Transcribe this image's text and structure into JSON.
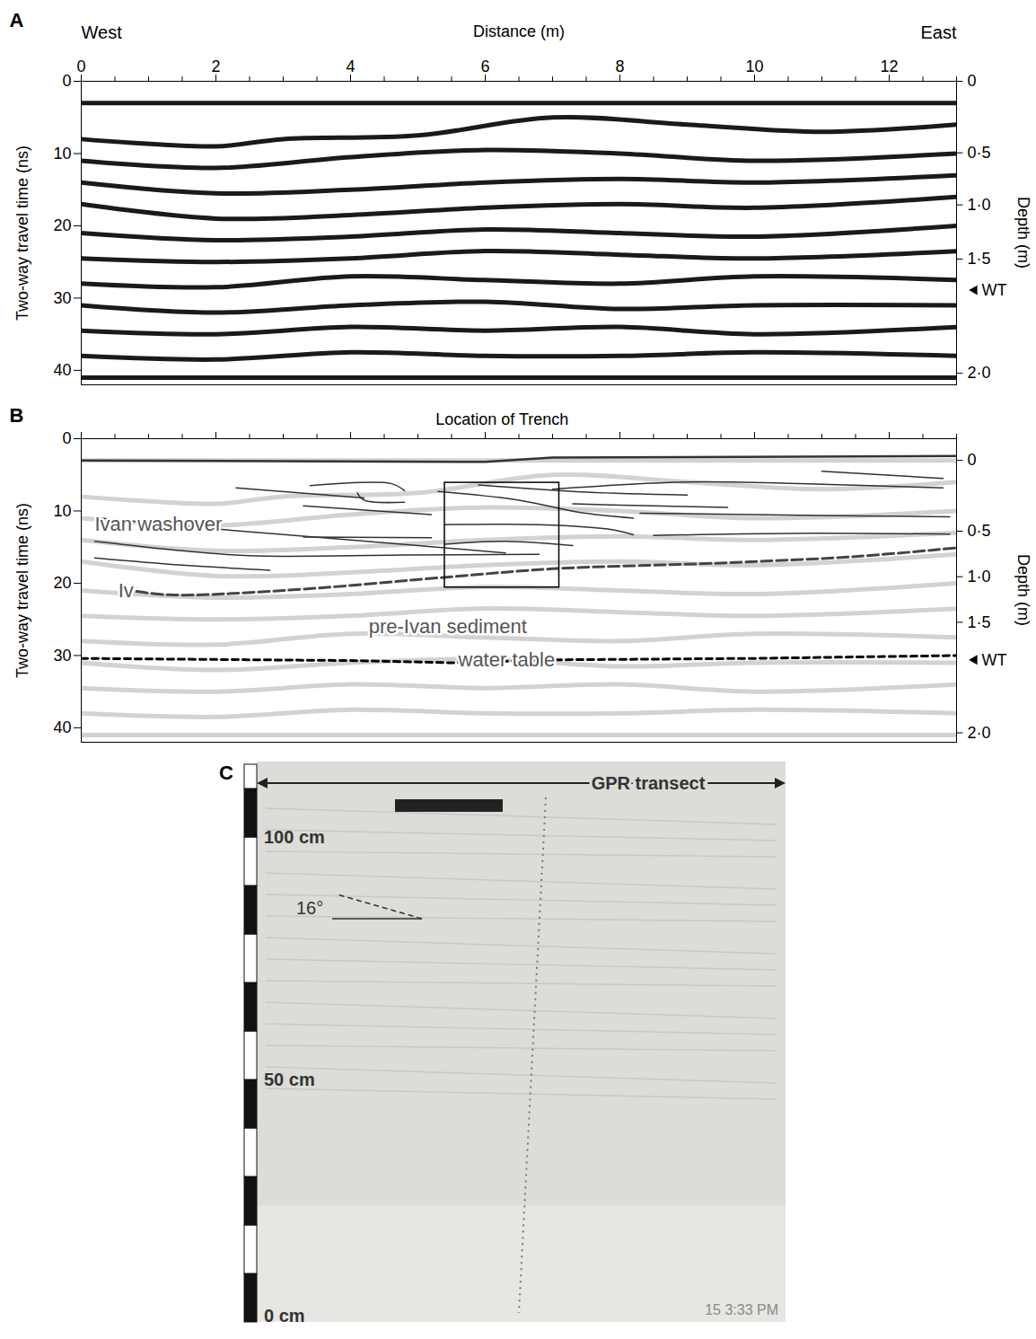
{
  "chart_data": [
    {
      "type": "radargram",
      "panel_label": "A",
      "xlabel": "Distance (m)",
      "x_end_labels": {
        "left": "West",
        "right": "East"
      },
      "ylabel": "Two-way travel time (ns)",
      "y2label": "Depth (m)",
      "xlim": [
        0,
        13
      ],
      "xticks": [
        0,
        2,
        4,
        6,
        8,
        10,
        12
      ],
      "x_minor_ticks": [
        0,
        0.5,
        1,
        1.5,
        2,
        2.5,
        3,
        3.5,
        4,
        4.5,
        5,
        5.5,
        6,
        6.5,
        7,
        7.5,
        8,
        8.5,
        9,
        9.5,
        10,
        10.5,
        11,
        11.5,
        12,
        12.5,
        13
      ],
      "ylim": [
        0,
        42
      ],
      "yticks": [
        0,
        10,
        20,
        30,
        40
      ],
      "y2ticks": [
        {
          "value": 0,
          "label": "0",
          "time_ns": 0
        },
        {
          "value": 0.5,
          "label": "0·5",
          "time_ns": 9.9
        },
        {
          "value": 1.0,
          "label": "1·0",
          "time_ns": 17.1
        },
        {
          "value": 1.5,
          "label": "1·5",
          "time_ns": 24.6
        },
        {
          "value": 2.0,
          "label": "2·0",
          "time_ns": 40.4
        }
      ],
      "water_table": {
        "label": "WT",
        "time_ns": 28.9
      },
      "reflectors": [
        [
          [
            0,
            3
          ],
          [
            13,
            3
          ]
        ],
        [
          [
            0,
            8
          ],
          [
            2,
            9
          ],
          [
            3,
            8
          ],
          [
            5,
            7.5
          ],
          [
            7,
            5
          ],
          [
            9,
            6
          ],
          [
            11,
            7
          ],
          [
            13,
            6
          ]
        ],
        [
          [
            0,
            11
          ],
          [
            2,
            12
          ],
          [
            4,
            10.5
          ],
          [
            6,
            9.5
          ],
          [
            8,
            10
          ],
          [
            10,
            11
          ],
          [
            13,
            10
          ]
        ],
        [
          [
            0,
            14
          ],
          [
            2,
            15.5
          ],
          [
            4,
            15
          ],
          [
            6,
            14
          ],
          [
            8,
            13.5
          ],
          [
            10,
            14
          ],
          [
            13,
            13
          ]
        ],
        [
          [
            0,
            17
          ],
          [
            2,
            19
          ],
          [
            4,
            18.5
          ],
          [
            6,
            17.5
          ],
          [
            8,
            17
          ],
          [
            10,
            17.5
          ],
          [
            13,
            16
          ]
        ],
        [
          [
            0,
            21
          ],
          [
            2,
            22
          ],
          [
            4,
            21.5
          ],
          [
            6,
            20.5
          ],
          [
            8,
            21
          ],
          [
            10,
            21.5
          ],
          [
            13,
            20
          ]
        ],
        [
          [
            0,
            24.5
          ],
          [
            2,
            25
          ],
          [
            4,
            24.5
          ],
          [
            6,
            23.5
          ],
          [
            8,
            24
          ],
          [
            10,
            24.5
          ],
          [
            13,
            23.5
          ]
        ],
        [
          [
            0,
            28
          ],
          [
            2,
            28.5
          ],
          [
            4,
            27
          ],
          [
            6,
            27.5
          ],
          [
            8,
            28
          ],
          [
            10,
            27
          ],
          [
            13,
            27.5
          ]
        ],
        [
          [
            0,
            31
          ],
          [
            2,
            32
          ],
          [
            4,
            31
          ],
          [
            6,
            30.5
          ],
          [
            8,
            31.5
          ],
          [
            10,
            31
          ],
          [
            13,
            31
          ]
        ],
        [
          [
            0,
            34.5
          ],
          [
            2,
            35
          ],
          [
            4,
            34
          ],
          [
            6,
            34.5
          ],
          [
            8,
            34
          ],
          [
            10,
            35
          ],
          [
            13,
            34
          ]
        ],
        [
          [
            0,
            38
          ],
          [
            2,
            38.5
          ],
          [
            4,
            37.5
          ],
          [
            6,
            38
          ],
          [
            8,
            38
          ],
          [
            10,
            37.5
          ],
          [
            13,
            38
          ]
        ],
        [
          [
            0,
            41
          ],
          [
            13,
            41
          ]
        ]
      ]
    },
    {
      "type": "radargram",
      "panel_label": "B",
      "tick_labels": "y",
      "annotation": "Location of Trench",
      "ylabel": "Two-way travel time (ns)",
      "y2label": "Depth (m)",
      "xlim": [
        0,
        13
      ],
      "xticks": [
        0,
        2,
        4,
        6,
        8,
        10,
        12
      ],
      "x_minor_ticks": [
        0,
        0.5,
        1,
        1.5,
        2,
        2.5,
        3,
        3.5,
        4,
        4.5,
        5,
        5.5,
        6,
        6.5,
        7,
        7.5,
        8,
        8.5,
        9,
        9.5,
        10,
        10.5,
        11,
        11.5,
        12,
        12.5,
        13
      ],
      "ylim": [
        0,
        42
      ],
      "yticks": [
        0,
        10,
        20,
        30,
        40
      ],
      "y2ticks": [
        {
          "value": 0,
          "label": "0",
          "time_ns": 3.0
        },
        {
          "value": 0.5,
          "label": "0·5",
          "time_ns": 12.8
        },
        {
          "value": 1.0,
          "label": "1·0",
          "time_ns": 19.1
        },
        {
          "value": 1.5,
          "label": "1·5",
          "time_ns": 25.4
        },
        {
          "value": 2.0,
          "label": "2·0",
          "time_ns": 40.7
        }
      ],
      "trench_box": {
        "x": [
          5.4,
          7.1
        ],
        "y": [
          6.1,
          20.6
        ]
      },
      "surface": [
        [
          0,
          3
        ],
        [
          6,
          3.2
        ],
        [
          7,
          2.6
        ],
        [
          13,
          2.4
        ]
      ],
      "interpreted_lines": [
        [
          [
            2.3,
            6.8
          ],
          [
            4.2,
            8.2
          ]
        ],
        [
          [
            3.4,
            6.5
          ],
          [
            4.6,
            6.2
          ],
          [
            4.8,
            7.2
          ]
        ],
        [
          [
            4.1,
            7.5
          ],
          [
            4.2,
            8.5
          ],
          [
            4.8,
            8.8
          ]
        ],
        [
          [
            3.3,
            9.3
          ],
          [
            4.4,
            10
          ],
          [
            5.2,
            10.5
          ]
        ],
        [
          [
            5.3,
            7.3
          ],
          [
            6.5,
            8.5
          ],
          [
            7.4,
            10.2
          ],
          [
            8.2,
            11
          ]
        ],
        [
          [
            5.9,
            6.4
          ],
          [
            7.5,
            7.4
          ],
          [
            9,
            7.8
          ]
        ],
        [
          [
            7,
            7
          ],
          [
            9,
            6
          ],
          [
            11,
            6.3
          ],
          [
            12.8,
            6.8
          ]
        ],
        [
          [
            11,
            4.5
          ],
          [
            12.8,
            5.5
          ]
        ],
        [
          [
            7.3,
            9
          ],
          [
            8.5,
            9.3
          ],
          [
            9.6,
            9.5
          ]
        ],
        [
          [
            8.3,
            10.3
          ],
          [
            10.7,
            10.6
          ],
          [
            12.9,
            10.8
          ]
        ],
        [
          [
            3.3,
            13.6
          ],
          [
            5.2,
            13.7
          ]
        ],
        [
          [
            5.4,
            11.9
          ],
          [
            6.8,
            11.9
          ],
          [
            7.9,
            12.6
          ],
          [
            8.2,
            13.3
          ]
        ],
        [
          [
            5.4,
            14.6
          ],
          [
            6.3,
            14.2
          ],
          [
            7.3,
            14.8
          ]
        ],
        [
          [
            0.3,
            11
          ],
          [
            2,
            12.5
          ],
          [
            4,
            14
          ],
          [
            6.3,
            15.8
          ]
        ],
        [
          [
            0.2,
            14.2
          ],
          [
            1.5,
            15.5
          ],
          [
            2.5,
            16.2
          ],
          [
            4.8,
            16.1
          ],
          [
            6.8,
            16
          ]
        ],
        [
          [
            0.2,
            16.5
          ],
          [
            1.5,
            17.5
          ],
          [
            2.8,
            18.2
          ]
        ],
        [
          [
            8.5,
            13.4
          ],
          [
            10.5,
            13.1
          ],
          [
            12.9,
            13.2
          ]
        ]
      ],
      "iv_surface": [
        [
          0.6,
          20.8
        ],
        [
          1.3,
          21.6
        ],
        [
          3,
          21
        ],
        [
          5.5,
          19.1
        ],
        [
          7,
          18
        ],
        [
          9.5,
          17.2
        ],
        [
          11.5,
          16.3
        ],
        [
          13,
          15.1
        ]
      ],
      "water_table": {
        "label": "WT",
        "time_ns": 30.6,
        "line": [
          [
            0,
            30.4
          ],
          [
            4,
            30.7
          ],
          [
            5.5,
            31
          ],
          [
            7,
            30.6
          ],
          [
            10,
            30.4
          ],
          [
            13,
            30
          ]
        ]
      },
      "labels": [
        {
          "text": "Ivan washover",
          "x": 0.2,
          "y": 11.8
        },
        {
          "text": "Iv",
          "x": 0.55,
          "y": 21
        },
        {
          "text": "pre-Ivan sediment",
          "x": 4.27,
          "y": 26
        },
        {
          "text": "water table",
          "x": 5.6,
          "y": 30.6
        }
      ]
    }
  ],
  "photo": {
    "panel_label": "C",
    "transect_label": "GPR transect",
    "angle_label": "16°",
    "angle": 16,
    "scale_labels": [
      {
        "value": 100,
        "label": "100 cm"
      },
      {
        "value": 50,
        "label": "50 cm"
      },
      {
        "value": 0,
        "label": "0 cm"
      }
    ],
    "ruler_max": 115,
    "ruler_step": 10,
    "timestamp": "15  3:33 PM"
  }
}
